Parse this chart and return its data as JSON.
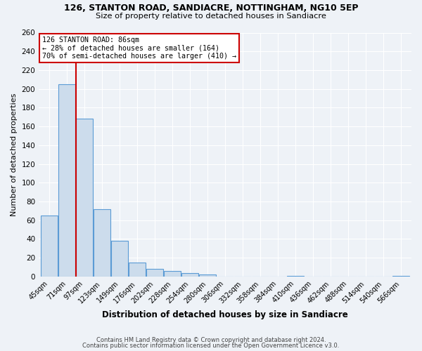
{
  "title1": "126, STANTON ROAD, SANDIACRE, NOTTINGHAM, NG10 5EP",
  "title2": "Size of property relative to detached houses in Sandiacre",
  "xlabel": "Distribution of detached houses by size in Sandiacre",
  "ylabel": "Number of detached properties",
  "bar_labels": [
    "45sqm",
    "71sqm",
    "97sqm",
    "123sqm",
    "149sqm",
    "176sqm",
    "202sqm",
    "228sqm",
    "254sqm",
    "280sqm",
    "306sqm",
    "332sqm",
    "358sqm",
    "384sqm",
    "410sqm",
    "436sqm",
    "462sqm",
    "488sqm",
    "514sqm",
    "540sqm",
    "566sqm"
  ],
  "bar_values": [
    65,
    205,
    168,
    72,
    38,
    15,
    8,
    6,
    4,
    2,
    0,
    0,
    0,
    0,
    1,
    0,
    0,
    0,
    0,
    0,
    1
  ],
  "bar_color": "#ccdcec",
  "bar_edge_color": "#5b9bd5",
  "ylim": [
    0,
    260
  ],
  "yticks": [
    0,
    20,
    40,
    60,
    80,
    100,
    120,
    140,
    160,
    180,
    200,
    220,
    240,
    260
  ],
  "vline_x_idx": 1.5,
  "vline_color": "#cc0000",
  "annotation_title": "126 STANTON ROAD: 86sqm",
  "annotation_line1": "← 28% of detached houses are smaller (164)",
  "annotation_line2": "70% of semi-detached houses are larger (410) →",
  "annotation_box_color": "#ffffff",
  "annotation_box_edge": "#cc0000",
  "footer1": "Contains HM Land Registry data © Crown copyright and database right 2024.",
  "footer2": "Contains public sector information licensed under the Open Government Licence v3.0.",
  "background_color": "#eef2f7",
  "grid_color": "#ffffff"
}
